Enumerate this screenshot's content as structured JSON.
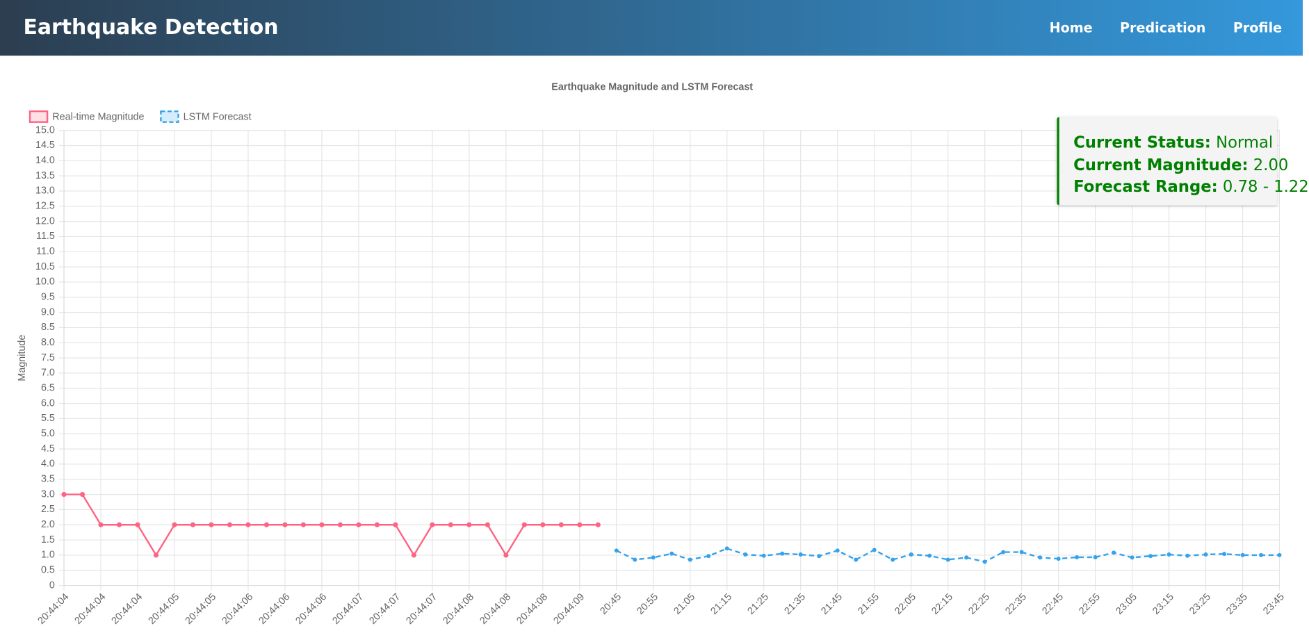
{
  "header": {
    "title": "Earthquake Detection",
    "nav": [
      "Home",
      "Predication",
      "Profile"
    ]
  },
  "status": {
    "items": [
      {
        "label": "Current Status:",
        "value": "Normal"
      },
      {
        "label": "Current Magnitude:",
        "value": "2.00"
      },
      {
        "label": "Forecast Range:",
        "value": "0.78 - 1.22"
      }
    ]
  },
  "chart_data": {
    "type": "line",
    "title": "Earthquake Magnitude and LSTM Forecast",
    "y_label": "Magnitude",
    "categories": [
      "20:44:04",
      null,
      "20:44:04",
      null,
      "20:44:04",
      null,
      "20:44:05",
      null,
      "20:44:05",
      null,
      "20:44:06",
      null,
      "20:44:06",
      null,
      "20:44:06",
      null,
      "20:44:07",
      null,
      "20:44:07",
      null,
      "20:44:07",
      null,
      "20:44:08",
      null,
      "20:44:08",
      null,
      "20:44:08",
      null,
      "20:44:09",
      null,
      "20:45",
      null,
      "20:55",
      null,
      "21:05",
      null,
      "21:15",
      null,
      "21:25",
      null,
      "21:35",
      null,
      "21:45",
      null,
      "21:55",
      null,
      "22:05",
      null,
      "22:15",
      null,
      "22:25",
      null,
      "22:35",
      null,
      "22:45",
      null,
      "22:55",
      null,
      "23:05",
      null,
      "23:15",
      null,
      "23:25",
      null,
      "23:35",
      null,
      "23:45"
    ],
    "series": [
      {
        "name": "Real-time Magnitude",
        "color": "#ff6384",
        "dashed": false,
        "values": [
          3,
          3,
          2,
          2,
          2,
          1,
          2,
          2,
          2,
          2,
          2,
          2,
          2,
          2,
          2,
          2,
          2,
          2,
          2,
          1,
          2,
          2,
          2,
          2,
          1,
          2,
          2,
          2,
          2,
          2,
          null,
          null,
          null,
          null,
          null,
          null,
          null,
          null,
          null,
          null,
          null,
          null,
          null,
          null,
          null,
          null,
          null,
          null,
          null,
          null,
          null,
          null,
          null,
          null,
          null,
          null,
          null,
          null,
          null,
          null,
          null,
          null,
          null,
          null,
          null,
          null,
          null
        ]
      },
      {
        "name": "LSTM Forecast",
        "color": "#36a2eb",
        "dashed": true,
        "values": [
          null,
          null,
          null,
          null,
          null,
          null,
          null,
          null,
          null,
          null,
          null,
          null,
          null,
          null,
          null,
          null,
          null,
          null,
          null,
          null,
          null,
          null,
          null,
          null,
          null,
          null,
          null,
          null,
          null,
          null,
          1.15,
          0.85,
          0.92,
          1.05,
          0.85,
          0.97,
          1.22,
          1.02,
          0.98,
          1.05,
          1.02,
          0.97,
          1.15,
          0.85,
          1.17,
          0.85,
          1.02,
          0.98,
          0.85,
          0.92,
          0.78,
          1.1,
          1.1,
          0.92,
          0.88,
          0.93,
          0.93,
          1.08,
          0.92,
          0.97,
          1.02,
          0.98,
          1.02,
          1.04,
          1.0,
          1.0,
          1.0
        ]
      }
    ],
    "ylim": [
      0,
      15
    ],
    "yticks": [
      0,
      0.5,
      {
        "value": 1,
        "label": "1.0"
      },
      1.5,
      {
        "value": 2,
        "label": "2.0"
      },
      2.5,
      {
        "value": 3,
        "label": "3.0"
      },
      3.5,
      {
        "value": 4,
        "label": "4.0"
      },
      4.5,
      {
        "value": 5,
        "label": "5.0"
      },
      5.5,
      {
        "value": 6,
        "label": "6.0"
      },
      6.5,
      {
        "value": 7,
        "label": "7.0"
      },
      7.5,
      {
        "value": 8,
        "label": "8.0"
      },
      8.5,
      {
        "value": 9,
        "label": "9.0"
      },
      9.5,
      {
        "value": 10,
        "label": "10.0"
      },
      10.5,
      {
        "value": 11,
        "label": "11.0"
      },
      11.5,
      {
        "value": 12,
        "label": "12.0"
      },
      12.5,
      {
        "value": 13,
        "label": "13.0"
      },
      13.5,
      {
        "value": 14,
        "label": "14.0"
      },
      14.5,
      {
        "value": 15,
        "label": "15.0"
      }
    ],
    "grid": true,
    "legend": "top-left"
  }
}
